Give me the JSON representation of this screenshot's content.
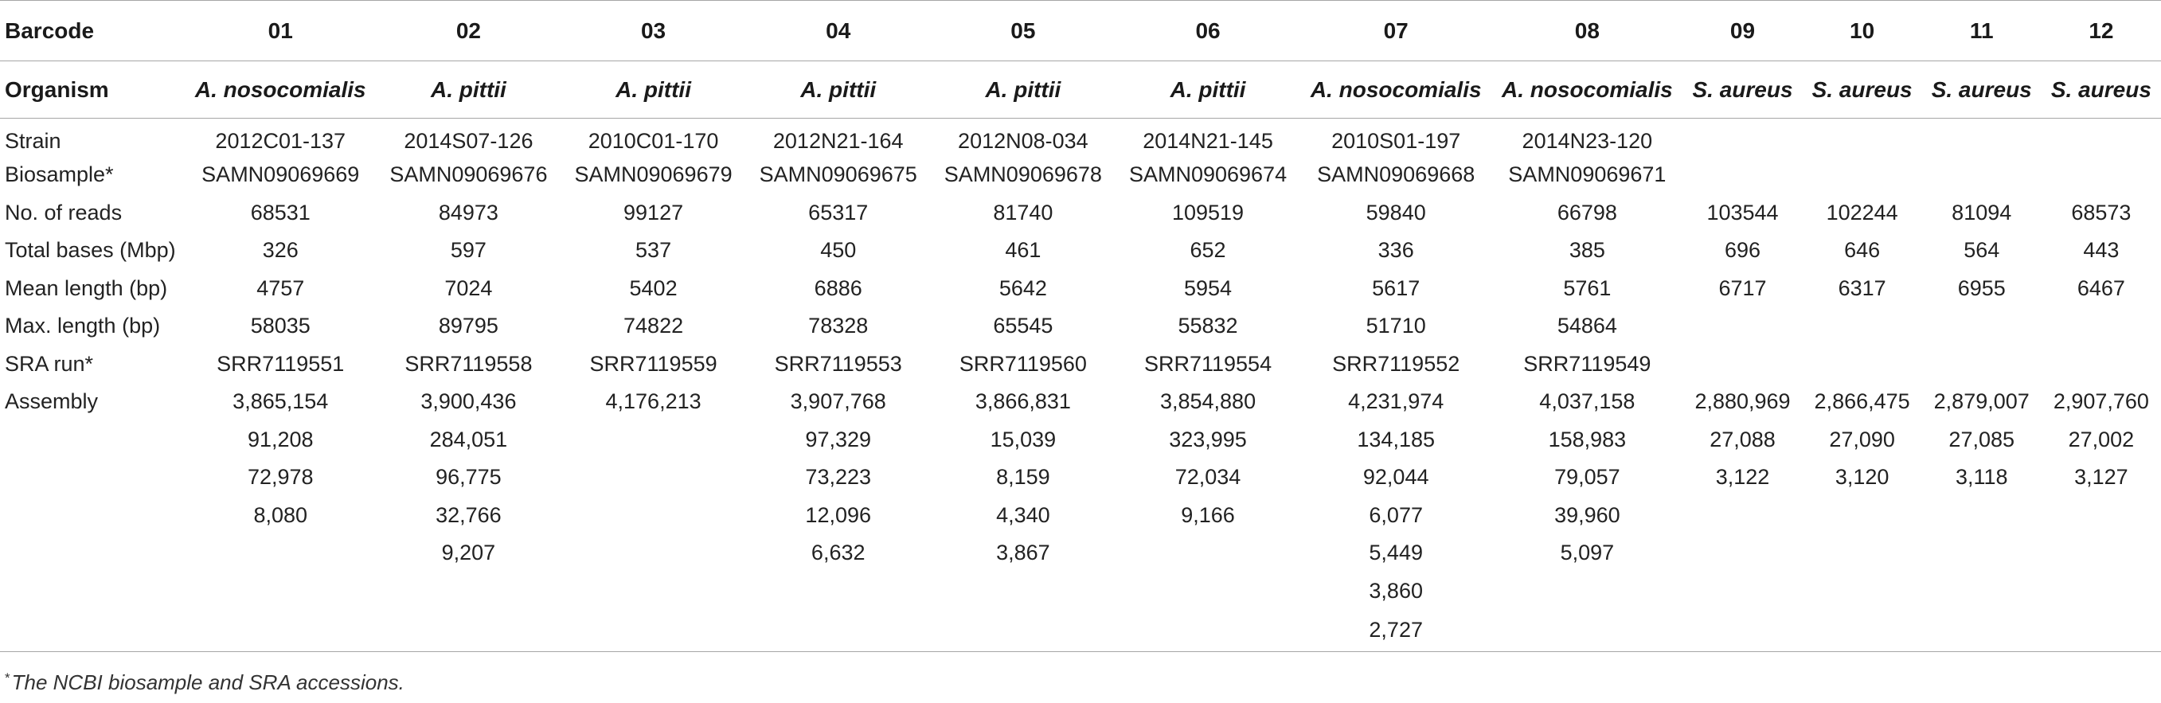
{
  "table": {
    "barcode_label": "Barcode",
    "barcodes": [
      "01",
      "02",
      "03",
      "04",
      "05",
      "06",
      "07",
      "08",
      "09",
      "10",
      "11",
      "12"
    ],
    "organism_label": "Organism",
    "organisms": [
      "A. nosocomialis",
      "A. pittii",
      "A. pittii",
      "A. pittii",
      "A. pittii",
      "A. pittii",
      "A. nosocomialis",
      "A. nosocomialis",
      "S. aureus",
      "S. aureus",
      "S. aureus",
      "S. aureus"
    ],
    "rows": [
      {
        "label": "Strain",
        "cells": [
          "2012C01-137",
          "2014S07-126",
          "2010C01-170",
          "2012N21-164",
          "2012N08-034",
          "2014N21-145",
          "2010S01-197",
          "2014N23-120",
          "",
          "",
          "",
          ""
        ]
      },
      {
        "label": "Biosample*",
        "cells": [
          "SAMN09069669",
          "SAMN09069676",
          "SAMN09069679",
          "SAMN09069675",
          "SAMN09069678",
          "SAMN09069674",
          "SAMN09069668",
          "SAMN09069671",
          "",
          "",
          "",
          ""
        ]
      },
      {
        "label": "No. of reads",
        "cells": [
          "68531",
          "84973",
          "99127",
          "65317",
          "81740",
          "109519",
          "59840",
          "66798",
          "103544",
          "102244",
          "81094",
          "68573"
        ]
      },
      {
        "label": "Total bases (Mbp)",
        "cells": [
          "326",
          "597",
          "537",
          "450",
          "461",
          "652",
          "336",
          "385",
          "696",
          "646",
          "564",
          "443"
        ]
      },
      {
        "label": "Mean length (bp)",
        "cells": [
          "4757",
          "7024",
          "5402",
          "6886",
          "5642",
          "5954",
          "5617",
          "5761",
          "6717",
          "6317",
          "6955",
          "6467"
        ]
      },
      {
        "label": "Max. length (bp)",
        "cells": [
          "58035",
          "89795",
          "74822",
          "78328",
          "65545",
          "55832",
          "51710",
          "54864",
          "",
          "",
          "",
          ""
        ]
      },
      {
        "label": "SRA run*",
        "cells": [
          "SRR7119551",
          "SRR7119558",
          "SRR7119559",
          "SRR7119553",
          "SRR7119560",
          "SRR7119554",
          "SRR7119552",
          "SRR7119549",
          "",
          "",
          "",
          ""
        ]
      },
      {
        "label": "Assembly",
        "cells": [
          "3,865,154",
          "3,900,436",
          "4,176,213",
          "3,907,768",
          "3,866,831",
          "3,854,880",
          "4,231,974",
          "4,037,158",
          "2,880,969",
          "2,866,475",
          "2,879,007",
          "2,907,760"
        ]
      },
      {
        "label": "",
        "cells": [
          "91,208",
          "284,051",
          "",
          "97,329",
          "15,039",
          "323,995",
          "134,185",
          "158,983",
          "27,088",
          "27,090",
          "27,085",
          "27,002"
        ]
      },
      {
        "label": "",
        "cells": [
          "72,978",
          "96,775",
          "",
          "73,223",
          "8,159",
          "72,034",
          "92,044",
          "79,057",
          "3,122",
          "3,120",
          "3,118",
          "3,127"
        ]
      },
      {
        "label": "",
        "cells": [
          "8,080",
          "32,766",
          "",
          "12,096",
          "4,340",
          "9,166",
          "6,077",
          "39,960",
          "",
          "",
          "",
          ""
        ]
      },
      {
        "label": "",
        "cells": [
          "",
          "9,207",
          "",
          "6,632",
          "3,867",
          "",
          "5,449",
          "5,097",
          "",
          "",
          "",
          ""
        ]
      },
      {
        "label": "",
        "cells": [
          "",
          "",
          "",
          "",
          "",
          "",
          "3,860",
          "",
          "",
          "",
          "",
          ""
        ]
      },
      {
        "label": "",
        "cells": [
          "",
          "",
          "",
          "",
          "",
          "",
          "2,727",
          "",
          "",
          "",
          "",
          ""
        ]
      }
    ]
  },
  "footnote": {
    "marker": "*",
    "text": "The NCBI biosample and SRA accessions."
  }
}
